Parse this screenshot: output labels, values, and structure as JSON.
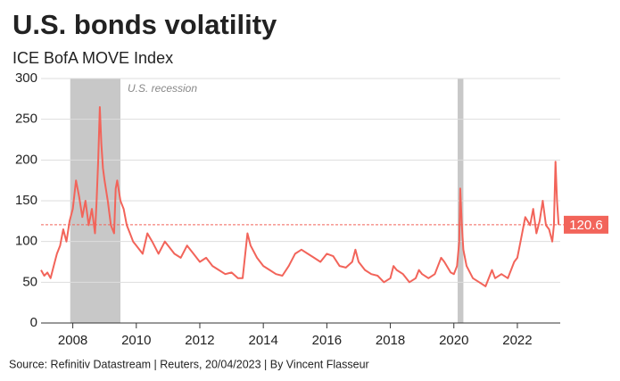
{
  "chart_data": {
    "type": "line",
    "title": "U.S. bonds volatility",
    "subtitle": "ICE BofA MOVE Index",
    "source": "Source: Refinitiv Datastream | Reuters, 20/04/2023 | By Vincent Flasseur",
    "recession_label": "U.S. recession",
    "recessions": [
      [
        2007.92,
        2009.5
      ],
      [
        2020.12,
        2020.3
      ]
    ],
    "recession_color": "#c8c8c8",
    "color": "#f2645a",
    "grid": true,
    "xlim": [
      2007,
      2023.35
    ],
    "xticks": [
      2008,
      2010,
      2012,
      2014,
      2016,
      2018,
      2020,
      2022
    ],
    "ylim": [
      0,
      300
    ],
    "yticks": [
      0,
      50,
      100,
      150,
      200,
      250,
      300
    ],
    "x": [
      2007.0,
      2007.1,
      2007.2,
      2007.3,
      2007.4,
      2007.5,
      2007.6,
      2007.7,
      2007.8,
      2007.9,
      2008.0,
      2008.1,
      2008.2,
      2008.3,
      2008.4,
      2008.5,
      2008.6,
      2008.7,
      2008.75,
      2008.8,
      2008.85,
      2008.9,
      2008.95,
      2009.0,
      2009.1,
      2009.2,
      2009.3,
      2009.35,
      2009.4,
      2009.5,
      2009.6,
      2009.7,
      2009.8,
      2009.9,
      2010.0,
      2010.2,
      2010.35,
      2010.5,
      2010.7,
      2010.9,
      2011.0,
      2011.2,
      2011.4,
      2011.6,
      2011.8,
      2012.0,
      2012.2,
      2012.4,
      2012.6,
      2012.8,
      2013.0,
      2013.2,
      2013.35,
      2013.5,
      2013.6,
      2013.8,
      2014.0,
      2014.2,
      2014.4,
      2014.6,
      2014.8,
      2015.0,
      2015.2,
      2015.4,
      2015.6,
      2015.8,
      2016.0,
      2016.2,
      2016.4,
      2016.6,
      2016.8,
      2016.9,
      2017.0,
      2017.2,
      2017.4,
      2017.6,
      2017.8,
      2018.0,
      2018.1,
      2018.2,
      2018.4,
      2018.6,
      2018.8,
      2018.9,
      2019.0,
      2019.2,
      2019.4,
      2019.6,
      2019.7,
      2019.9,
      2020.0,
      2020.1,
      2020.17,
      2020.2,
      2020.25,
      2020.3,
      2020.4,
      2020.6,
      2020.8,
      2021.0,
      2021.1,
      2021.2,
      2021.3,
      2021.5,
      2021.7,
      2021.9,
      2022.0,
      2022.1,
      2022.25,
      2022.4,
      2022.5,
      2022.6,
      2022.7,
      2022.8,
      2022.9,
      2023.0,
      2023.1,
      2023.15,
      2023.2,
      2023.25,
      2023.3
    ],
    "values": [
      65,
      58,
      62,
      55,
      70,
      85,
      95,
      115,
      100,
      125,
      140,
      175,
      155,
      130,
      150,
      120,
      140,
      110,
      150,
      200,
      265,
      220,
      190,
      175,
      150,
      120,
      110,
      165,
      175,
      150,
      140,
      120,
      110,
      100,
      95,
      85,
      110,
      100,
      85,
      100,
      95,
      85,
      80,
      95,
      85,
      75,
      80,
      70,
      65,
      60,
      62,
      55,
      55,
      110,
      95,
      80,
      70,
      65,
      60,
      58,
      70,
      85,
      90,
      85,
      80,
      75,
      85,
      82,
      70,
      68,
      75,
      90,
      75,
      65,
      60,
      58,
      50,
      55,
      70,
      65,
      60,
      50,
      55,
      65,
      60,
      55,
      60,
      80,
      75,
      62,
      60,
      70,
      100,
      165,
      120,
      90,
      70,
      55,
      50,
      45,
      55,
      65,
      55,
      60,
      55,
      75,
      80,
      100,
      130,
      120,
      140,
      110,
      125,
      150,
      120,
      115,
      100,
      120,
      198,
      150,
      120.6
    ]
  }
}
